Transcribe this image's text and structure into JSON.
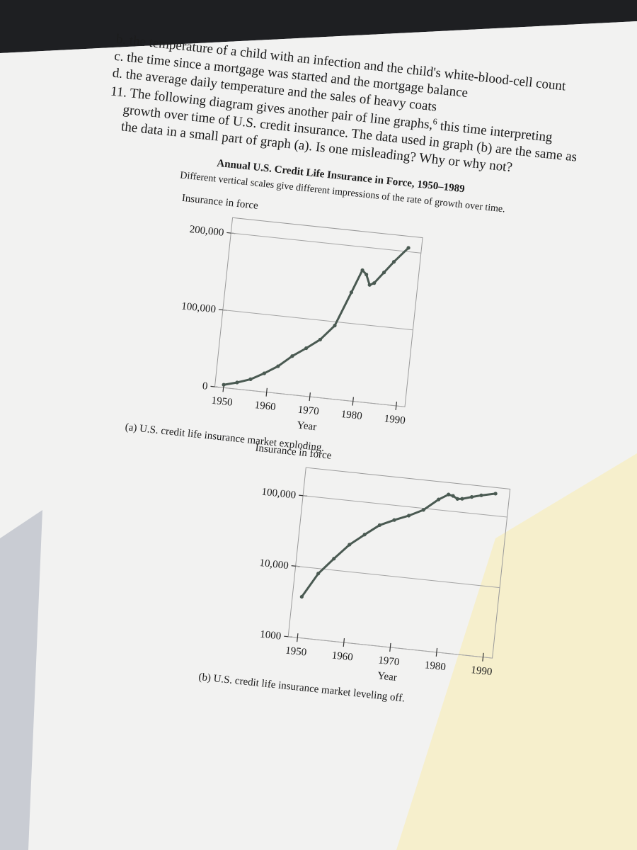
{
  "text_lines": [
    "b. the temperature of a child with an infection and the child's white-blood-cell count",
    "c. the time since a mortgage was started and the mortgage balance",
    "d. the average daily temperature and the sales of heavy coats"
  ],
  "question": {
    "start": "11. The following diagram gives another pair of line graphs,",
    "footnote": "6",
    "end": " this time interpreting",
    "lines": [
      "growth over time of U.S. credit insurance. The data used in graph (b) are the same as",
      "the data in a small part of graph (a). Is one misleading? Why or why not?"
    ]
  },
  "figure": {
    "title": "Annual U.S. Credit Life Insurance in Force, 1950–1989",
    "subtitle": "Different vertical scales give different impressions of the rate of growth over time."
  },
  "chart_data": [
    {
      "type": "line",
      "y_label": "Insurance in force",
      "x_label": "Year",
      "caption": "(a) U.S. credit life insurance market exploding.",
      "x": [
        1950,
        1953,
        1956,
        1959,
        1962,
        1965,
        1968,
        1971,
        1974,
        1977,
        1979,
        1980,
        1981,
        1982,
        1984,
        1986,
        1989
      ],
      "values": [
        3800,
        8500,
        14500,
        24000,
        35000,
        50000,
        62000,
        75000,
        95000,
        140000,
        170000,
        165000,
        152000,
        155000,
        170000,
        185000,
        205000
      ],
      "color": "#4a5a52",
      "xlim": [
        1948,
        1992
      ],
      "xticks": [
        1950,
        1960,
        1970,
        1980,
        1990
      ],
      "ylim": [
        0,
        220000
      ],
      "yticks": [
        0,
        {
          "value": 100000,
          "label": "100,000"
        },
        {
          "value": 200000,
          "label": "200,000"
        }
      ],
      "log_y": false,
      "grid": true
    },
    {
      "type": "line",
      "y_label": "Insurance in force",
      "x_label": "Year",
      "caption": "(b) U.S. credit life insurance market leveling off.",
      "x": [
        1950,
        1953,
        1956,
        1959,
        1962,
        1965,
        1968,
        1971,
        1974,
        1977,
        1979,
        1980,
        1981,
        1982,
        1984,
        1986,
        1989
      ],
      "values": [
        3800,
        8500,
        14500,
        24000,
        35000,
        50000,
        62000,
        75000,
        95000,
        140000,
        170000,
        165000,
        152000,
        155000,
        170000,
        185000,
        205000
      ],
      "color": "#4a5a52",
      "xlim": [
        1948,
        1992
      ],
      "xticks": [
        1950,
        1960,
        1970,
        1980,
        1990
      ],
      "ylim": [
        1000,
        250000
      ],
      "yticks": [
        {
          "value": 1000,
          "label": "1000"
        },
        {
          "value": 10000,
          "label": "10,000"
        },
        {
          "value": 100000,
          "label": "100,000"
        }
      ],
      "log_y": true,
      "grid": true
    }
  ]
}
